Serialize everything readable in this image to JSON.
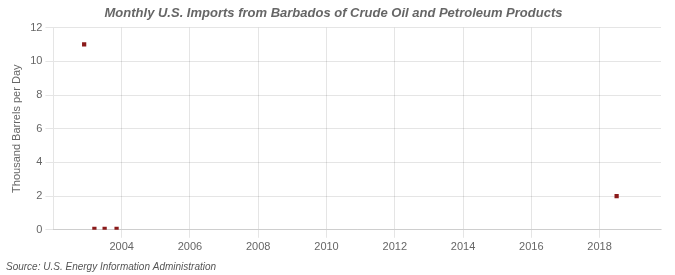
{
  "chart_data": {
    "type": "scatter",
    "title": "Monthly U.S. Imports from Barbados of Crude Oil and Petroleum Products",
    "ylabel": "Thousand Barrels per Day",
    "annotations": [
      "Source: U.S. Energy Information Administration"
    ],
    "x": [
      2002.9,
      2003.2,
      2003.5,
      2003.85,
      2018.5
    ],
    "values": [
      11.0,
      0.05,
      0.05,
      0.05,
      2.0
    ],
    "color": "#8b1a1a",
    "marker": "square",
    "xlim": [
      2002.0,
      2019.8
    ],
    "ylim": [
      0,
      12
    ],
    "xticks": [
      2004,
      2006,
      2008,
      2010,
      2012,
      2014,
      2016,
      2018
    ],
    "yticks": [
      0,
      2,
      4,
      6,
      8,
      10,
      12
    ],
    "grid": true,
    "legend": false
  }
}
